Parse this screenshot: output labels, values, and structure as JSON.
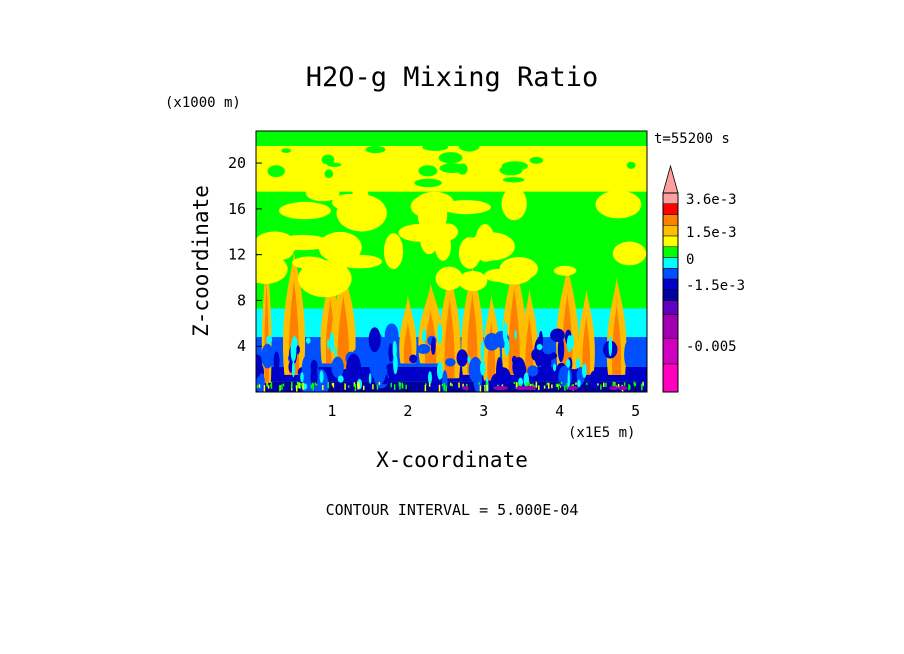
{
  "chart_data": {
    "type": "heatmap",
    "title": "H2O-g Mixing Ratio",
    "time_label": "t=55200 s",
    "xlabel": "X-coordinate",
    "ylabel": "Z-coordinate",
    "x_unit": "(x1E5 m)",
    "y_unit": "(x1000 m)",
    "footer": "CONTOUR INTERVAL = 5.000E-04",
    "xlim": [
      0,
      5.15
    ],
    "ylim": [
      0,
      22.8
    ],
    "x_ticks": [
      1,
      2,
      3,
      4,
      5
    ],
    "y_ticks": [
      4,
      8,
      12,
      16,
      20
    ],
    "grid": false,
    "colorbar": {
      "labels": [
        "3.6e-3",
        "1.5e-3",
        "0",
        "-1.5e-3",
        "-0.005"
      ],
      "colors": [
        "#ff9fa0",
        "#ff0000",
        "#ff8000",
        "#ffbf00",
        "#ffff00",
        "#00ff00",
        "#00ffff",
        "#0050ff",
        "#0000c8",
        "#0000a0",
        "#6000c0",
        "#a000b0",
        "#d000c0",
        "#ff00bf"
      ]
    },
    "bands": [
      {
        "z": [
          0.0,
          0.9
        ],
        "color": "#0000a0",
        "level": "-2.5e-3"
      },
      {
        "z": [
          0.9,
          2.2
        ],
        "color": "#0000c8",
        "level": "-2.0e-3"
      },
      {
        "z": [
          2.2,
          4.8
        ],
        "color": "#0050ff",
        "level": "-1.5e-3"
      },
      {
        "z": [
          4.8,
          7.3
        ],
        "color": "#00ffff",
        "level": "-1.0e-3"
      },
      {
        "z": [
          7.3,
          17.5
        ],
        "color": "#00ff00",
        "level": "-5e-4"
      },
      {
        "z": [
          17.5,
          21.5
        ],
        "color": "#ffff00",
        "level": "0"
      },
      {
        "z": [
          21.5,
          22.8
        ],
        "color": "#00ff00",
        "level": "-5e-4"
      }
    ],
    "plumes": [
      {
        "x": 0.14,
        "z": [
          0.8,
          12.0
        ],
        "w": 0.04
      },
      {
        "x": 0.5,
        "z": [
          1.5,
          12.2
        ],
        "w": 0.09
      },
      {
        "x": 0.98,
        "z": [
          2.5,
          10.5
        ],
        "w": 0.08
      },
      {
        "x": 1.15,
        "z": [
          2.0,
          10.8
        ],
        "w": 0.1
      },
      {
        "x": 2.0,
        "z": [
          2.5,
          8.5
        ],
        "w": 0.07
      },
      {
        "x": 2.3,
        "z": [
          2.5,
          9.5
        ],
        "w": 0.1
      },
      {
        "x": 2.55,
        "z": [
          1.2,
          10.5
        ],
        "w": 0.09
      },
      {
        "x": 2.85,
        "z": [
          1.5,
          11.0
        ],
        "w": 0.09
      },
      {
        "x": 3.1,
        "z": [
          1.0,
          8.5
        ],
        "w": 0.07
      },
      {
        "x": 3.4,
        "z": [
          1.5,
          11.5
        ],
        "w": 0.1
      },
      {
        "x": 3.6,
        "z": [
          1.5,
          9.0
        ],
        "w": 0.07
      },
      {
        "x": 4.1,
        "z": [
          2.0,
          11.0
        ],
        "w": 0.09
      },
      {
        "x": 4.35,
        "z": [
          1.5,
          9.0
        ],
        "w": 0.07
      },
      {
        "x": 4.75,
        "z": [
          1.5,
          10.0
        ],
        "w": 0.08
      }
    ]
  }
}
